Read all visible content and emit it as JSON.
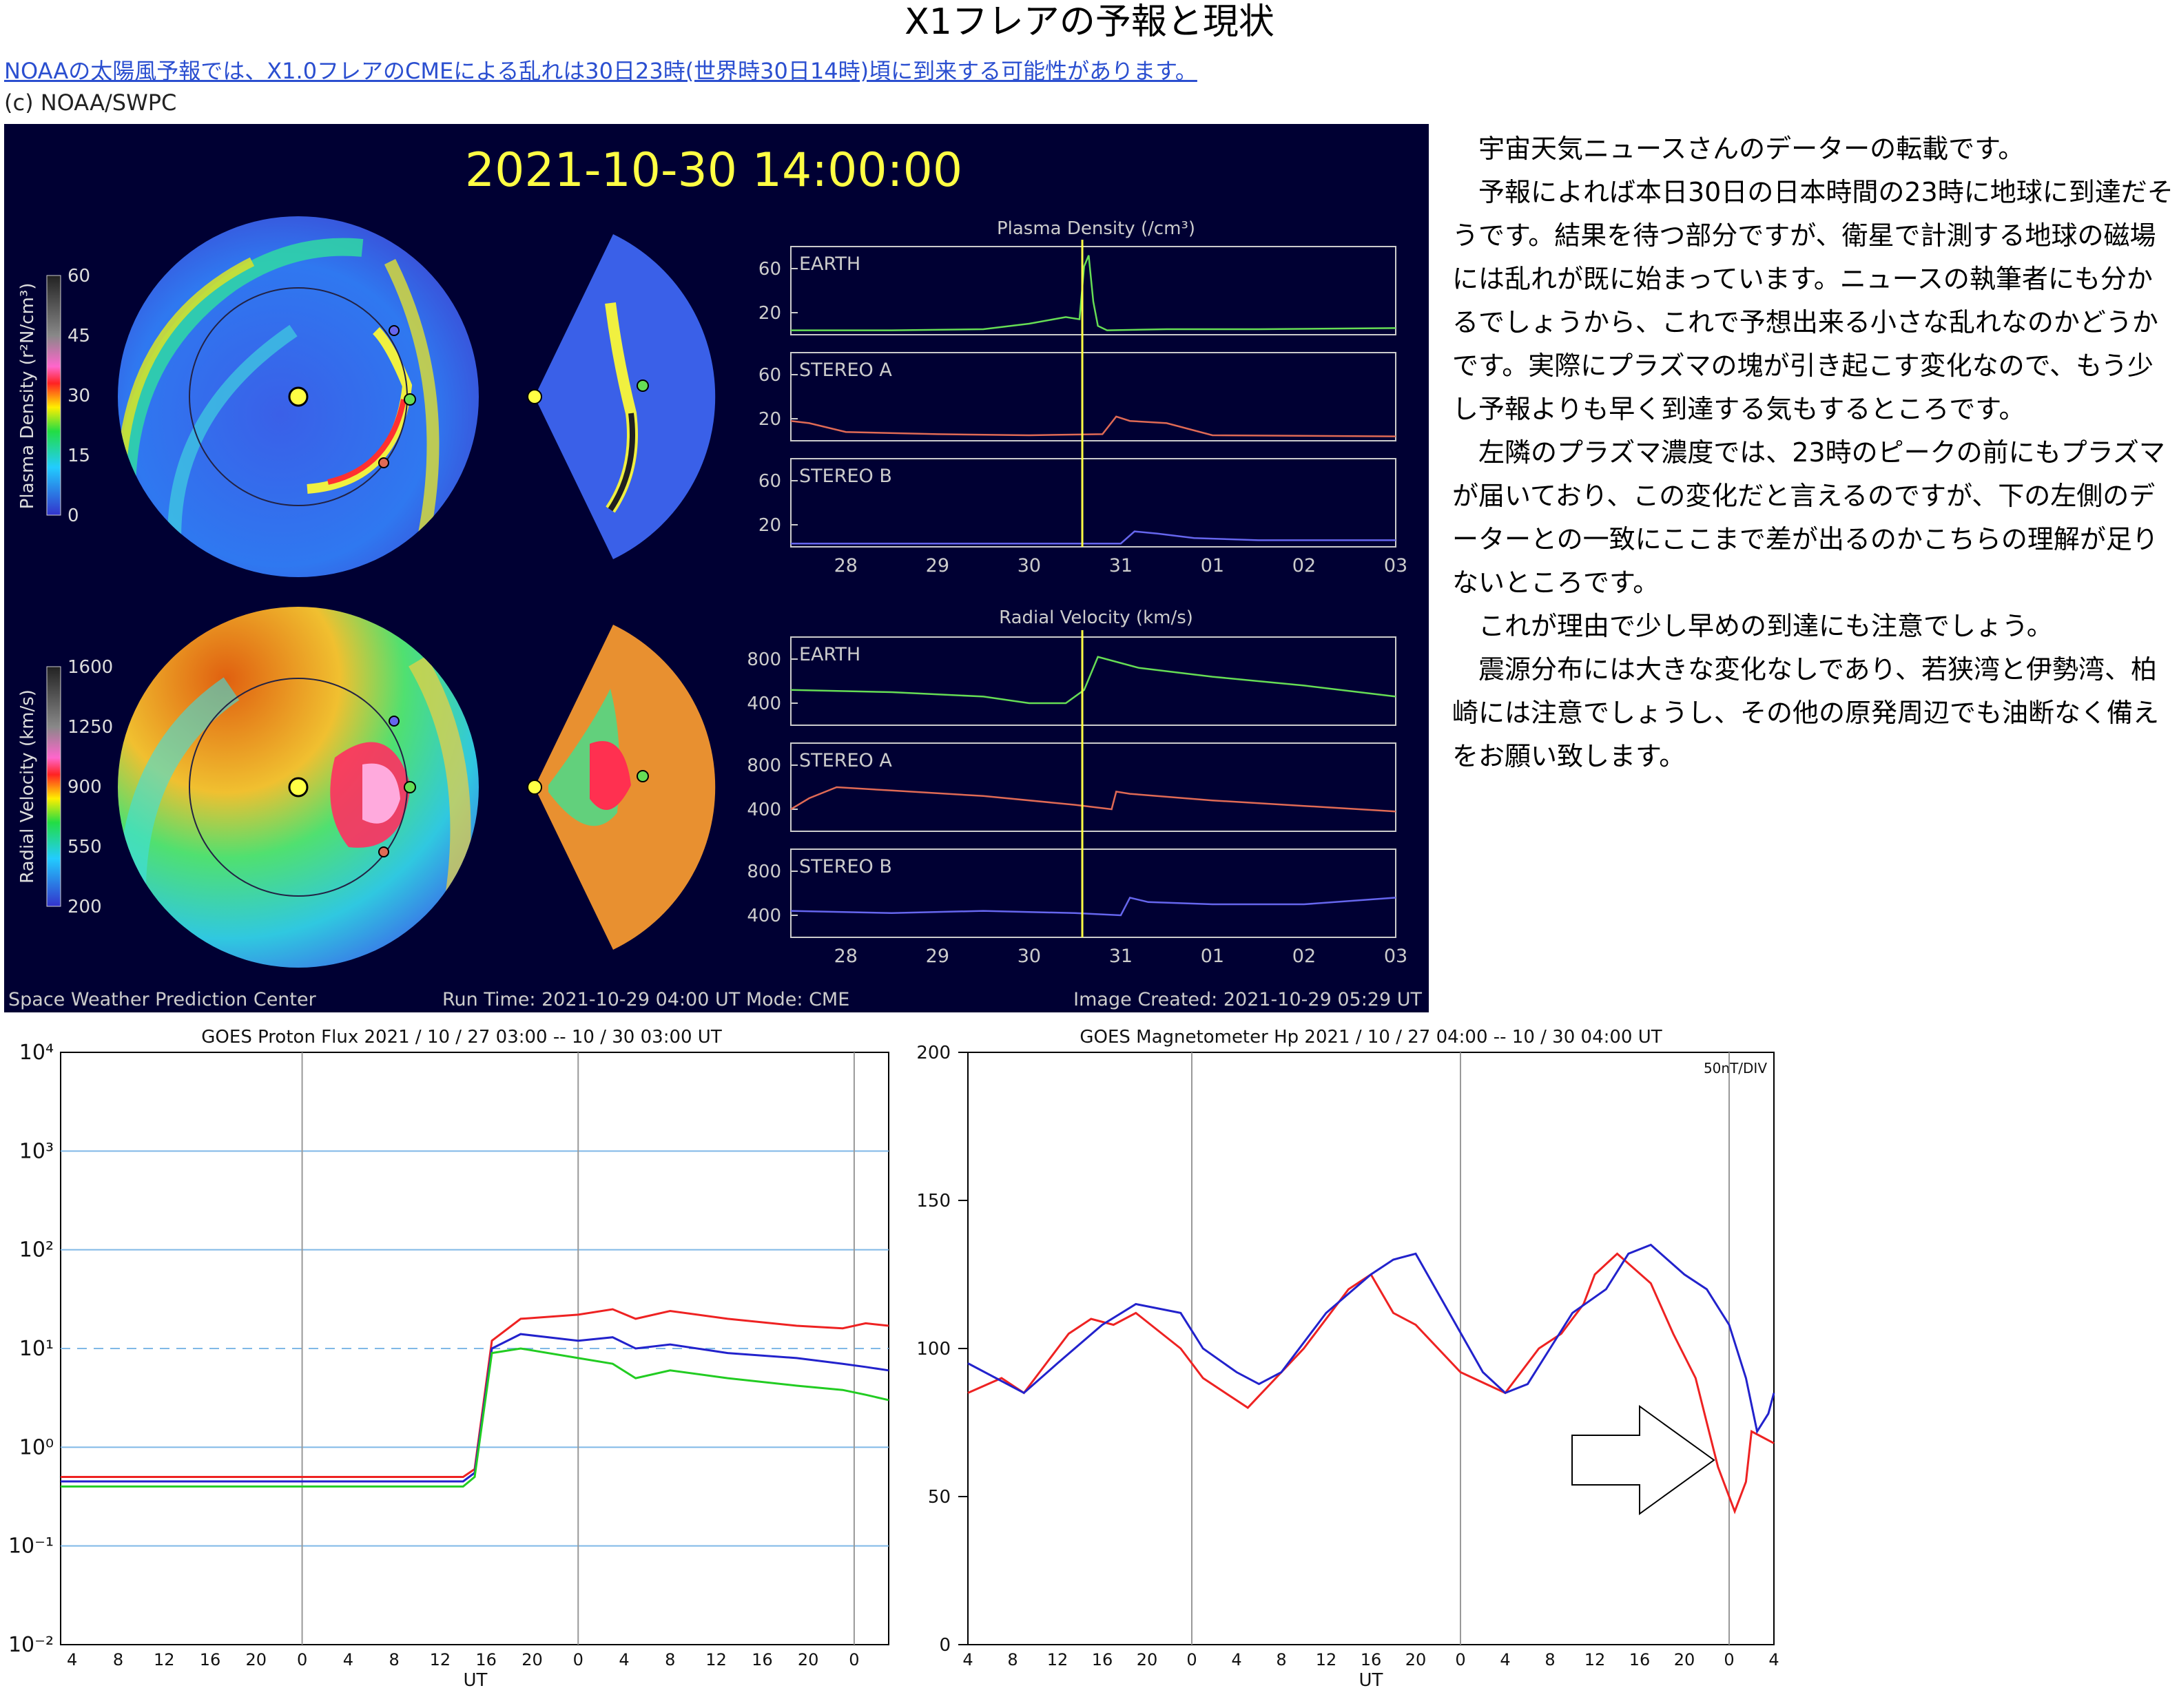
{
  "page": {
    "title": "X1フレアの予報と現状",
    "news_link": "NOAAの太陽風予報では、X1.0フレアのCMEによる乱れは30日23時(世界時30日14時)頃に到来する可能性があります。",
    "credit": "(c) NOAA/SWPC"
  },
  "article": {
    "paragraphs": [
      "　宇宙天気ニュースさんのデーターの転載です。",
      "　予報によれば本日30日の日本時間の23時に地球に到達だそうです。結果を待つ部分ですが、衛星で計測する地球の磁場には乱れが既に始まっています。ニュースの執筆者にも分かるでしょうから、これで予想出来る小さな乱れなのかどうかです。実際にプラズマの塊が引き起こす変化なので、もう少し予報よりも早く到達する気もするところです。",
      "　左隣のプラズマ濃度では、23時のピークの前にもプラズマが届いており、この変化だと言えるのですが、下の左側のデーターとの一致にここまで差が出るのかこちらの理解が足りないところです。",
      "　これが理由で少し早めの到達にも注意でしょう。",
      "　震源分布には大きな変化なしであり、若狭湾と伊勢湾、柏崎には注意でしょうし、その他の原発周辺でも油断なく備えをお願い致します。"
    ]
  },
  "colors": {
    "earth": "#66dd55",
    "stereo_a": "#e06a55",
    "stereo_b": "#6666ee",
    "marker": "#ffff44",
    "proton_red": "#ee2222",
    "proton_blue": "#2222cc",
    "proton_green": "#22cc22",
    "gridline": "#7fb8e6",
    "link": "#2b4fd0"
  },
  "chart_data": [
    {
      "type": "line",
      "header": "2021-10-30  14:00:00",
      "title": "Plasma Density (/cm³)",
      "colorbar_label": "Plasma Density (r²N/cm³)",
      "colorbar_ticks": [
        "0",
        "15",
        "30",
        "45",
        "60"
      ],
      "x_tick_labels": [
        "28",
        "29",
        "30",
        "31",
        "01",
        "02",
        "03"
      ],
      "x_range": [
        27.4,
        34.0
      ],
      "marker_x": 30.58,
      "ylim": [
        0,
        80
      ],
      "y_ticks": [
        "20",
        "60"
      ],
      "series": [
        {
          "name": "EARTH",
          "x": [
            27.4,
            28.5,
            29.5,
            30.0,
            30.4,
            30.55,
            30.6,
            30.65,
            30.7,
            30.75,
            30.85,
            31.5,
            32.5,
            34.0
          ],
          "values": [
            4,
            4,
            5,
            10,
            16,
            14,
            62,
            72,
            30,
            8,
            4,
            5,
            5,
            6
          ]
        },
        {
          "name": "STEREO A",
          "x": [
            27.4,
            27.6,
            28.0,
            29.0,
            30.0,
            30.8,
            30.95,
            31.1,
            31.5,
            32.0,
            34.0
          ],
          "values": [
            18,
            16,
            8,
            6,
            5,
            6,
            22,
            18,
            16,
            5,
            4
          ]
        },
        {
          "name": "STEREO B",
          "x": [
            27.4,
            28.5,
            29.5,
            30.5,
            31.0,
            31.15,
            31.4,
            31.8,
            32.5,
            34.0
          ],
          "values": [
            3,
            3,
            3,
            3,
            3,
            14,
            12,
            8,
            6,
            6
          ]
        }
      ]
    },
    {
      "type": "line",
      "title": "Radial Velocity (km/s)",
      "colorbar_label": "Radial Velocity (km/s)",
      "colorbar_ticks": [
        "200",
        "550",
        "900",
        "1250",
        "1600"
      ],
      "x_tick_labels": [
        "28",
        "29",
        "30",
        "31",
        "01",
        "02",
        "03"
      ],
      "x_range": [
        27.4,
        34.0
      ],
      "marker_x": 30.58,
      "ylim": [
        200,
        1000
      ],
      "y_ticks": [
        "400",
        "800"
      ],
      "series": [
        {
          "name": "EARTH",
          "x": [
            27.4,
            28.5,
            29.5,
            30.0,
            30.4,
            30.6,
            30.75,
            31.2,
            32.0,
            33.0,
            34.0
          ],
          "values": [
            520,
            500,
            460,
            400,
            400,
            520,
            820,
            720,
            640,
            560,
            460
          ]
        },
        {
          "name": "STEREO A",
          "x": [
            27.4,
            27.6,
            27.9,
            28.5,
            29.5,
            30.5,
            30.9,
            30.95,
            31.1,
            32.0,
            33.0,
            34.0
          ],
          "values": [
            400,
            500,
            600,
            570,
            520,
            440,
            400,
            560,
            540,
            480,
            430,
            380
          ]
        },
        {
          "name": "STEREO B",
          "x": [
            27.4,
            28.5,
            29.5,
            30.5,
            31.0,
            31.1,
            31.3,
            32.0,
            33.0,
            34.0
          ],
          "values": [
            440,
            420,
            440,
            420,
            400,
            560,
            520,
            500,
            500,
            560
          ]
        }
      ],
      "footer": {
        "left": "Space Weather Prediction Center",
        "middle": "Run Time: 2021-10-29 04:00 UT   Mode: CME",
        "right": "Image Created: 2021-10-29 05:29 UT"
      }
    },
    {
      "type": "line",
      "title": "GOES Proton Flux   2021 / 10 / 27    03:00 -- 10 / 30   03:00   UT",
      "xlabel": "UT",
      "log_scale": true,
      "x_range": [
        0,
        72
      ],
      "ylim": [
        0.01,
        10000
      ],
      "y_tick_labels": [
        "10⁴",
        "10³",
        "10²",
        "10¹",
        "10⁰",
        "10⁻¹",
        "10⁻²"
      ],
      "x_tick_labels": [
        "4",
        "8",
        "12",
        "16",
        "20",
        "0",
        "4",
        "8",
        "12",
        "16",
        "20",
        "0",
        "4",
        "8",
        "12",
        "16",
        "20",
        "0"
      ],
      "dashed_level": 10,
      "series": [
        {
          "x": [
            0,
            12,
            24,
            35,
            36,
            37.5,
            40,
            45,
            48,
            50,
            53,
            58,
            64,
            68,
            70,
            72
          ],
          "values": [
            0.5,
            0.5,
            0.5,
            0.5,
            0.6,
            12,
            20,
            22,
            25,
            20,
            24,
            20,
            17,
            16,
            18,
            17
          ]
        },
        {
          "x": [
            0,
            12,
            24,
            35,
            36,
            37.5,
            40,
            45,
            48,
            50,
            53,
            58,
            64,
            68,
            70,
            72
          ],
          "values": [
            0.45,
            0.45,
            0.45,
            0.45,
            0.55,
            10,
            14,
            12,
            13,
            10,
            11,
            9,
            8,
            7,
            6.5,
            6
          ]
        },
        {
          "x": [
            0,
            12,
            24,
            35,
            36,
            37.5,
            40,
            45,
            48,
            50,
            53,
            58,
            64,
            68,
            70,
            72
          ],
          "values": [
            0.4,
            0.4,
            0.4,
            0.4,
            0.5,
            9,
            10,
            8,
            7,
            5,
            6,
            5,
            4.2,
            3.8,
            3.4,
            3
          ]
        }
      ]
    },
    {
      "type": "line",
      "title": "GOES Magnetometer Hp   2021 / 10 / 27   04:00 -- 10 / 30   04:00   UT",
      "xlabel": "UT",
      "scale_note": "50nT/DIV",
      "x_range": [
        0,
        72
      ],
      "ylim": [
        0,
        200
      ],
      "y_ticks": [
        "0",
        "50",
        "100",
        "150",
        "200"
      ],
      "x_tick_labels": [
        "4",
        "8",
        "12",
        "16",
        "20",
        "0",
        "4",
        "8",
        "12",
        "16",
        "20",
        "0",
        "4",
        "8",
        "12",
        "16",
        "20",
        "0",
        "4"
      ],
      "series": [
        {
          "x": [
            0,
            3,
            5,
            7,
            9,
            11,
            13,
            15,
            19,
            21,
            23,
            25,
            27,
            30,
            34,
            36,
            38,
            40,
            44,
            48,
            51,
            53,
            55,
            56,
            58,
            61,
            63,
            65,
            66,
            67,
            68.5,
            69.5,
            70,
            71,
            72
          ],
          "values": [
            85,
            90,
            85,
            95,
            105,
            110,
            108,
            112,
            100,
            90,
            85,
            80,
            88,
            100,
            120,
            125,
            112,
            108,
            92,
            85,
            100,
            105,
            115,
            125,
            132,
            122,
            105,
            90,
            75,
            60,
            45,
            55,
            72,
            70,
            68
          ]
        },
        {
          "x": [
            0,
            5,
            8,
            12,
            15,
            19,
            21,
            24,
            26,
            28,
            32,
            36,
            38,
            40,
            43,
            46,
            48,
            50,
            52,
            54,
            57,
            59,
            61,
            64,
            66,
            68,
            69.5,
            70.5,
            71.5,
            72
          ],
          "values": [
            95,
            85,
            95,
            108,
            115,
            112,
            100,
            92,
            88,
            92,
            112,
            125,
            130,
            132,
            112,
            92,
            85,
            88,
            100,
            112,
            120,
            132,
            135,
            125,
            120,
            108,
            90,
            72,
            78,
            85
          ]
        }
      ]
    }
  ]
}
